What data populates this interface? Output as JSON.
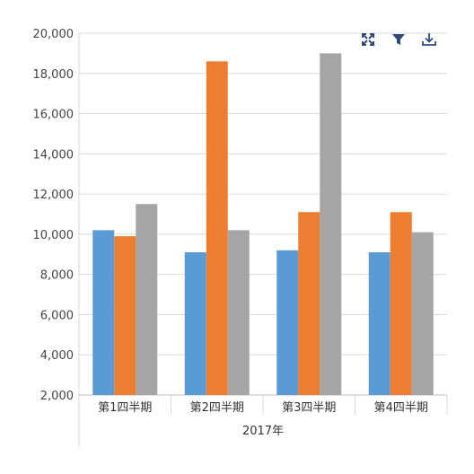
{
  "toolbar": {
    "icons": [
      "focus-icon",
      "filter-icon",
      "download-icon"
    ],
    "icon_color": "#2f4b7c"
  },
  "chart_data": {
    "type": "bar",
    "categories": [
      "第1四半期",
      "第2四半期",
      "第3四半期",
      "第4四半期"
    ],
    "group_label": "2017年",
    "series": [
      {
        "color": "#5b9bd5",
        "values": [
          10200,
          9100,
          9200,
          9100
        ]
      },
      {
        "color": "#ed7d31",
        "values": [
          9900,
          18600,
          11100,
          11100
        ]
      },
      {
        "color": "#a5a5a5",
        "values": [
          11500,
          10200,
          19000,
          10100
        ]
      }
    ],
    "ylim": [
      2000,
      20000
    ],
    "yticks": [
      "2,000",
      "4,000",
      "6,000",
      "8,000",
      "10,000",
      "12,000",
      "14,000",
      "16,000",
      "18,000",
      "20,000"
    ],
    "grid": true,
    "legend": "none"
  }
}
